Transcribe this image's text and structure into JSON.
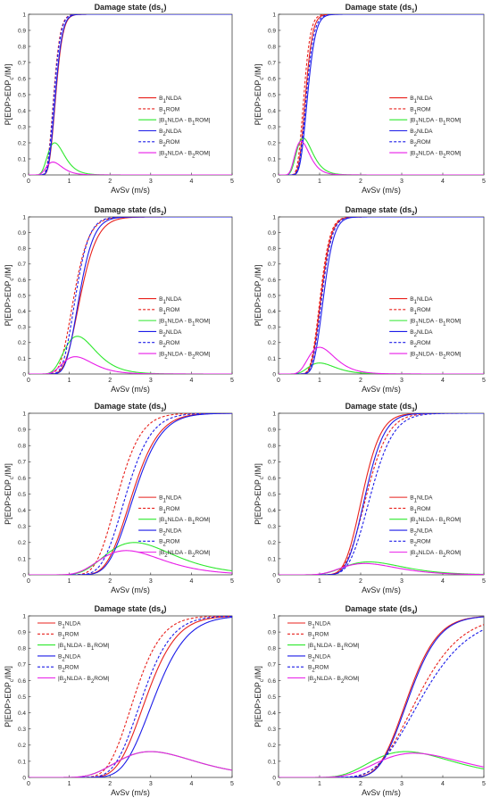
{
  "common": {
    "xlabel": "AvSv (m/s)",
    "ylabel_parts": [
      "P[EDP>EDP",
      "c",
      "/IM]"
    ],
    "xticks": [
      "0",
      "1",
      "2",
      "3",
      "4",
      "5"
    ],
    "yticks": [
      "0",
      "0.1",
      "0.2",
      "0.3",
      "0.4",
      "0.5",
      "0.6",
      "0.7",
      "0.8",
      "0.9",
      "1"
    ],
    "legend": [
      {
        "pre": "B",
        "sub": "1",
        "post": "NLDA",
        "color": "#e8211c",
        "dash": false
      },
      {
        "pre": "B",
        "sub": "1",
        "post": "ROM",
        "color": "#e8211c",
        "dash": true
      },
      {
        "pre": "|B",
        "sub": "1",
        "post": "NLDA - B",
        "sub2": "1",
        "post2": "ROM|",
        "color": "#2ee82e",
        "dash": false
      },
      {
        "pre": "B",
        "sub": "2",
        "post": "NLDA",
        "color": "#1c1ce8",
        "dash": false
      },
      {
        "pre": "B",
        "sub": "2",
        "post": "ROM",
        "color": "#1c1ce8",
        "dash": true
      },
      {
        "pre": "|B",
        "sub": "2",
        "post": "NLDA - B",
        "sub2": "2",
        "post2": "ROM|",
        "color": "#e81ce8",
        "dash": false
      }
    ]
  },
  "chart_data": [
    {
      "type": "line",
      "title_prefix": "Damage state (ds",
      "title_sub": "1",
      "title_suffix": ")",
      "xlim": [
        0,
        5
      ],
      "ylim": [
        0,
        1
      ],
      "legend_position": "center-right",
      "series": [
        {
          "name": "B1NLDA",
          "median": 0.67,
          "beta": 0.2
        },
        {
          "name": "B1ROM",
          "median": 0.62,
          "beta": 0.2
        },
        {
          "name": "|B1NLDA - B1ROM|",
          "peak_x": 0.64,
          "peak_y": 0.2
        },
        {
          "name": "B2NLDA",
          "median": 0.66,
          "beta": 0.2
        },
        {
          "name": "B2ROM",
          "median": 0.63,
          "beta": 0.2
        },
        {
          "name": "|B2NLDA - B2ROM|",
          "peak_x": 0.6,
          "peak_y": 0.08
        }
      ]
    },
    {
      "type": "line",
      "title_prefix": "Damage state (ds",
      "title_sub": "1",
      "title_suffix": ")",
      "xlim": [
        0,
        5
      ],
      "ylim": [
        0,
        1
      ],
      "legend_position": "center-right",
      "series": [
        {
          "name": "B1NLDA",
          "median": 0.66,
          "beta": 0.2
        },
        {
          "name": "B1ROM",
          "median": 0.62,
          "beta": 0.2
        },
        {
          "name": "|B1NLDA - B1ROM|",
          "peak_x": 0.6,
          "peak_y": 0.23
        },
        {
          "name": "B2NLDA",
          "median": 0.71,
          "beta": 0.21
        },
        {
          "name": "B2ROM",
          "median": 0.68,
          "beta": 0.21
        },
        {
          "name": "|B2NLDA - B2ROM|",
          "peak_x": 0.55,
          "peak_y": 0.21
        }
      ]
    },
    {
      "type": "line",
      "title_prefix": "Damage state (ds",
      "title_sub": "2",
      "title_suffix": ")",
      "xlim": [
        0,
        5
      ],
      "ylim": [
        0,
        1
      ],
      "legend_position": "center-right",
      "series": [
        {
          "name": "B1NLDA",
          "median": 1.28,
          "beta": 0.25
        },
        {
          "name": "B1ROM",
          "median": 1.12,
          "beta": 0.25
        },
        {
          "name": "|B1NLDA - B1ROM|",
          "peak_x": 1.2,
          "peak_y": 0.24
        },
        {
          "name": "B2NLDA",
          "median": 1.25,
          "beta": 0.22
        },
        {
          "name": "B2ROM",
          "median": 1.16,
          "beta": 0.22
        },
        {
          "name": "|B2NLDA - B2ROM|",
          "peak_x": 1.15,
          "peak_y": 0.11
        }
      ]
    },
    {
      "type": "line",
      "title_prefix": "Damage state (ds",
      "title_sub": "2",
      "title_suffix": ")",
      "xlim": [
        0,
        5
      ],
      "ylim": [
        0,
        1
      ],
      "legend_position": "center-right",
      "series": [
        {
          "name": "B1NLDA",
          "median": 1.04,
          "beta": 0.18
        },
        {
          "name": "B1ROM",
          "median": 1.02,
          "beta": 0.18
        },
        {
          "name": "|B1NLDA - B1ROM|",
          "peak_x": 1.0,
          "peak_y": 0.07
        },
        {
          "name": "B2NLDA",
          "median": 1.1,
          "beta": 0.18
        },
        {
          "name": "B2ROM",
          "median": 1.06,
          "beta": 0.18
        },
        {
          "name": "|B2NLDA - B2ROM|",
          "peak_x": 1.0,
          "peak_y": 0.17
        }
      ]
    },
    {
      "type": "line",
      "title_prefix": "Damage state (ds",
      "title_sub": "3",
      "title_suffix": ")",
      "xlim": [
        0,
        5
      ],
      "ylim": [
        0,
        1
      ],
      "legend_position": "center-right",
      "series": [
        {
          "name": "B1NLDA",
          "median": 2.55,
          "beta": 0.2
        },
        {
          "name": "B1ROM",
          "median": 2.2,
          "beta": 0.2
        },
        {
          "name": "|B1NLDA - B1ROM|",
          "peak_x": 2.6,
          "peak_y": 0.2
        },
        {
          "name": "B2NLDA",
          "median": 2.6,
          "beta": 0.2
        },
        {
          "name": "B2ROM",
          "median": 2.4,
          "beta": 0.2
        },
        {
          "name": "|B2NLDA - B2ROM|",
          "peak_x": 2.4,
          "peak_y": 0.15
        }
      ]
    },
    {
      "type": "line",
      "title_prefix": "Damage state (ds",
      "title_sub": "3",
      "title_suffix": ")",
      "xlim": [
        0,
        5
      ],
      "ylim": [
        0,
        1
      ],
      "legend_position": "center-right",
      "series": [
        {
          "name": "B1NLDA",
          "median": 2.05,
          "beta": 0.17
        },
        {
          "name": "B1ROM",
          "median": 2.15,
          "beta": 0.19
        },
        {
          "name": "|B1NLDA - B1ROM|",
          "peak_x": 2.2,
          "peak_y": 0.08
        },
        {
          "name": "B2NLDA",
          "median": 2.12,
          "beta": 0.17
        },
        {
          "name": "B2ROM",
          "median": 2.25,
          "beta": 0.19
        },
        {
          "name": "|B2NLDA - B2ROM|",
          "peak_x": 2.1,
          "peak_y": 0.07
        }
      ]
    },
    {
      "type": "line",
      "title_prefix": "Damage state (ds",
      "title_sub": "4",
      "title_suffix": ")",
      "xlim": [
        0,
        5
      ],
      "ylim": [
        0,
        1
      ],
      "legend_position": "upper-left",
      "series": [
        {
          "name": "B1NLDA",
          "median": 2.9,
          "beta": 0.2
        },
        {
          "name": "B1ROM",
          "median": 2.6,
          "beta": 0.2
        },
        {
          "name": "|B1NLDA - B1ROM|",
          "peak_x": 3.0,
          "peak_y": 0.16
        },
        {
          "name": "B2NLDA",
          "median": 3.1,
          "beta": 0.2
        },
        {
          "name": "B2ROM",
          "median": 2.8,
          "beta": 0.2
        },
        {
          "name": "|B2NLDA - B2ROM|",
          "peak_x": 3.0,
          "peak_y": 0.16
        }
      ]
    },
    {
      "type": "line",
      "title_prefix": "Damage state (ds",
      "title_sub": "4",
      "title_suffix": ")",
      "xlim": [
        0,
        5
      ],
      "ylim": [
        0,
        1
      ],
      "legend_position": "upper-left",
      "series": [
        {
          "name": "B1NLDA",
          "median": 3.15,
          "beta": 0.18
        },
        {
          "name": "B1ROM",
          "median": 3.4,
          "beta": 0.24
        },
        {
          "name": "|B1NLDA - B1ROM|",
          "peak_x": 3.1,
          "peak_y": 0.16
        },
        {
          "name": "B2NLDA",
          "median": 3.18,
          "beta": 0.18
        },
        {
          "name": "B2ROM",
          "median": 3.5,
          "beta": 0.26
        },
        {
          "name": "|B2NLDA - B2ROM|",
          "peak_x": 3.3,
          "peak_y": 0.15
        }
      ]
    }
  ]
}
